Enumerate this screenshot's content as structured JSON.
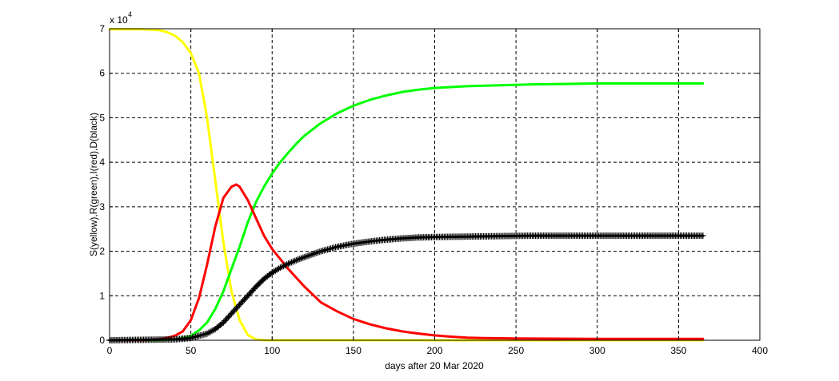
{
  "chart_data": {
    "type": "line",
    "xlabel": "days after 20 Mar 2020",
    "ylabel": "S(yellow),R(green),I(red),D(black)",
    "xlim": [
      0,
      400
    ],
    "ylim": [
      0,
      7
    ],
    "xticks": [
      "0",
      "50",
      "100",
      "150",
      "200",
      "250",
      "300",
      "350",
      "400"
    ],
    "yticks": [
      "0",
      "1",
      "2",
      "3",
      "4",
      "5",
      "6",
      "7"
    ],
    "y_multiplier": {
      "base": "x 10",
      "exponent": "4"
    },
    "grid": true,
    "series": [
      {
        "color": "#ffff00",
        "marker": "none",
        "x": [
          0,
          10,
          20,
          30,
          35,
          40,
          45,
          50,
          55,
          60,
          65,
          70,
          75,
          80,
          85,
          90,
          95,
          100,
          150,
          200,
          250,
          300,
          365
        ],
        "y": [
          6.99,
          6.99,
          6.99,
          6.97,
          6.93,
          6.85,
          6.7,
          6.45,
          6.0,
          5.0,
          3.6,
          2.2,
          1.1,
          0.45,
          0.12,
          0.02,
          0.0,
          0.0,
          0.0,
          0.0,
          0.0,
          0.0,
          0.0
        ]
      },
      {
        "color": "#00ff00",
        "marker": "none",
        "x": [
          0,
          30,
          40,
          45,
          50,
          55,
          60,
          65,
          70,
          75,
          80,
          85,
          90,
          95,
          100,
          105,
          110,
          115,
          120,
          130,
          140,
          150,
          160,
          170,
          180,
          190,
          200,
          220,
          240,
          260,
          280,
          300,
          320,
          340,
          365
        ],
        "y": [
          0.0,
          0.0,
          0.02,
          0.05,
          0.1,
          0.22,
          0.4,
          0.7,
          1.1,
          1.6,
          2.1,
          2.65,
          3.1,
          3.45,
          3.75,
          4.0,
          4.22,
          4.42,
          4.6,
          4.88,
          5.1,
          5.27,
          5.4,
          5.5,
          5.58,
          5.63,
          5.67,
          5.71,
          5.73,
          5.75,
          5.76,
          5.77,
          5.77,
          5.77,
          5.77
        ]
      },
      {
        "color": "#ff0000",
        "marker": "none",
        "x": [
          0,
          20,
          30,
          35,
          40,
          45,
          50,
          55,
          60,
          65,
          70,
          75,
          78,
          80,
          85,
          90,
          95,
          100,
          110,
          120,
          130,
          140,
          150,
          160,
          170,
          180,
          190,
          200,
          210,
          220,
          230,
          250,
          300,
          365
        ],
        "y": [
          0.0,
          0.0,
          0.02,
          0.05,
          0.1,
          0.2,
          0.45,
          0.95,
          1.7,
          2.55,
          3.2,
          3.45,
          3.5,
          3.45,
          3.15,
          2.75,
          2.35,
          2.05,
          1.6,
          1.2,
          0.85,
          0.65,
          0.48,
          0.36,
          0.27,
          0.2,
          0.15,
          0.11,
          0.08,
          0.06,
          0.05,
          0.04,
          0.03,
          0.03
        ]
      },
      {
        "color": "#000000",
        "marker": "+",
        "x": [
          0,
          40,
          50,
          55,
          60,
          65,
          70,
          75,
          80,
          85,
          90,
          95,
          100,
          105,
          110,
          115,
          120,
          130,
          140,
          150,
          160,
          170,
          180,
          190,
          200,
          220,
          240,
          260,
          300,
          365
        ],
        "y": [
          0.0,
          0.02,
          0.05,
          0.1,
          0.15,
          0.25,
          0.4,
          0.6,
          0.8,
          1.0,
          1.2,
          1.38,
          1.52,
          1.63,
          1.72,
          1.8,
          1.87,
          2.0,
          2.1,
          2.17,
          2.22,
          2.26,
          2.29,
          2.31,
          2.32,
          2.33,
          2.34,
          2.35,
          2.35,
          2.35
        ]
      }
    ]
  }
}
